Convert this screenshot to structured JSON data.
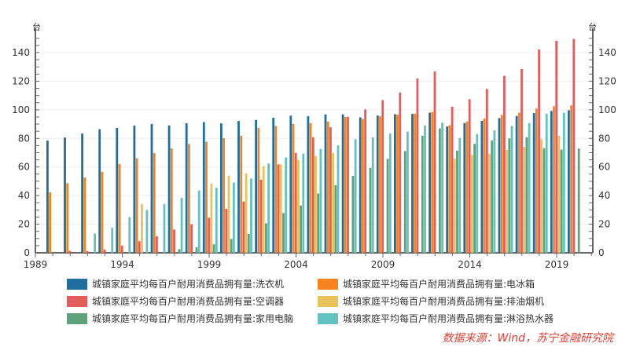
{
  "chart_data": {
    "type": "bar",
    "title": "",
    "ylabel_left": "台",
    "ylabel_right": "台",
    "ylim": [
      0,
      150
    ],
    "yticks": [
      0,
      20,
      40,
      60,
      80,
      100,
      120,
      140
    ],
    "xtick_labels": [
      "1989",
      "1994",
      "1999",
      "2004",
      "2009",
      "2014",
      "2019"
    ],
    "categories": [
      1990,
      1991,
      1992,
      1993,
      1994,
      1995,
      1996,
      1997,
      1998,
      1999,
      2000,
      2001,
      2002,
      2003,
      2004,
      2005,
      2006,
      2007,
      2008,
      2009,
      2010,
      2011,
      2012,
      2013,
      2014,
      2015,
      2016,
      2017,
      2018,
      2019,
      2020
    ],
    "series": [
      {
        "name": "城镇家庭平均每百户耐用消费品拥有量:洗衣机",
        "color": "#1f6ea0",
        "values": [
          78.4,
          80.6,
          83.4,
          86.4,
          87.3,
          89.0,
          90.1,
          89.1,
          90.6,
          91.4,
          90.5,
          92.2,
          92.9,
          94.4,
          95.9,
          95.5,
          96.8,
          96.8,
          94.7,
          96.0,
          96.9,
          97.1,
          98.0,
          88.4,
          90.7,
          92.3,
          94.2,
          95.7,
          97.7,
          99.2,
          99.7
        ]
      },
      {
        "name": "城镇家庭平均每百户耐用消费品拥有量:电冰箱",
        "color": "#f5841f",
        "values": [
          42.3,
          48.7,
          52.6,
          56.7,
          62.1,
          66.2,
          69.7,
          73.0,
          76.1,
          77.7,
          80.1,
          81.9,
          87.4,
          88.7,
          90.2,
          90.7,
          91.8,
          95.0,
          93.6,
          95.4,
          96.6,
          97.2,
          98.5,
          89.2,
          91.7,
          94.0,
          96.4,
          98.0,
          100.9,
          102.5,
          103.1
        ]
      },
      {
        "name": "城镇家庭平均每百户耐用消费品拥有量:空调器",
        "color": "#e45c5c",
        "values": [
          0.3,
          1.3,
          1.2,
          2.3,
          5.0,
          8.1,
          11.6,
          16.3,
          20.0,
          24.5,
          30.8,
          35.8,
          51.1,
          61.8,
          69.8,
          80.7,
          87.8,
          95.1,
          100.3,
          106.8,
          112.1,
          122.0,
          126.8,
          102.2,
          107.4,
          114.6,
          123.7,
          128.6,
          142.2,
          148.3,
          149.6
        ]
      },
      {
        "name": "城镇家庭平均每百户耐用消费品拥有量:排油烟机",
        "color": "#e8c35a",
        "values": [
          null,
          null,
          null,
          null,
          null,
          34.0,
          null,
          null,
          null,
          48.5,
          54.0,
          55.5,
          60.6,
          61.8,
          65.0,
          67.6,
          69.8,
          null,
          null,
          null,
          null,
          null,
          null,
          65.9,
          68.4,
          69.1,
          71.9,
          74.1,
          79.3,
          81.8,
          null
        ]
      },
      {
        "name": "城镇家庭平均每百户耐用消费品拥有量:家用电脑",
        "color": "#5ea27a",
        "values": [
          null,
          null,
          null,
          null,
          null,
          null,
          null,
          2.6,
          3.8,
          5.9,
          9.7,
          13.3,
          20.6,
          27.8,
          33.1,
          41.5,
          47.2,
          53.8,
          59.3,
          65.7,
          71.2,
          81.9,
          87.0,
          71.5,
          76.2,
          78.5,
          80.0,
          80.8,
          73.1,
          72.2,
          72.9
        ]
      },
      {
        "name": "城镇家庭平均每百户耐用消费品拥有量:淋浴热水器",
        "color": "#62c2c2",
        "values": [
          null,
          null,
          13.5,
          17.5,
          25.0,
          30.0,
          34.0,
          38.5,
          43.5,
          45.5,
          49.1,
          52.0,
          62.4,
          66.6,
          69.4,
          72.7,
          75.1,
          79.4,
          80.7,
          83.4,
          84.8,
          89.1,
          91.0,
          80.3,
          83.0,
          85.6,
          88.7,
          90.7,
          97.2,
          98.0,
          null
        ]
      }
    ],
    "legend": "bottom",
    "grid": true
  },
  "source": "数据来源：Wind，苏宁金融研究院"
}
